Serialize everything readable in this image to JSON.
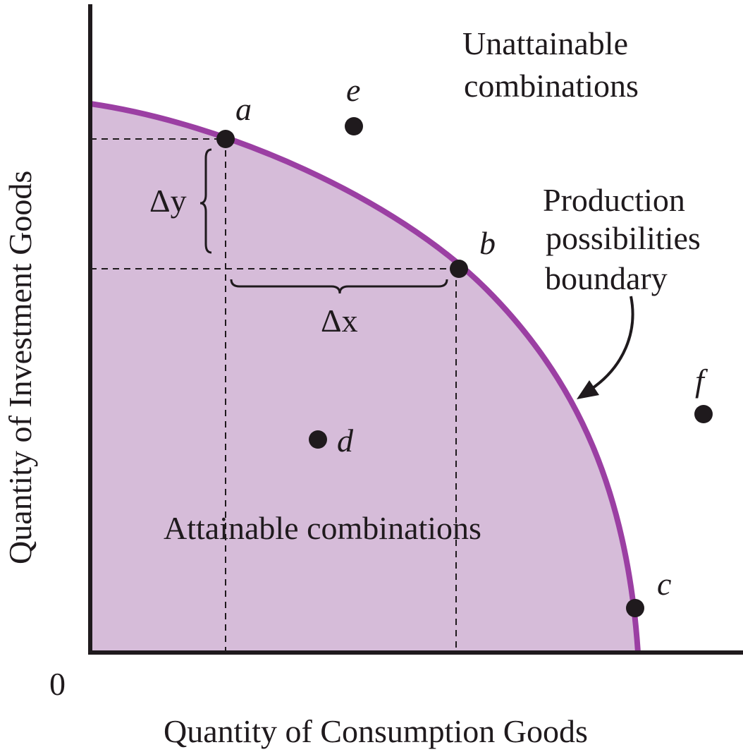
{
  "chart_data": {
    "type": "diagram",
    "xlabel": "Quantity of Consumption Goods",
    "ylabel": "Quantity of Investment Goods",
    "origin_label": "0",
    "region_labels": {
      "attainable": "Attainable combinations",
      "unattainable_line1": "Unattainable",
      "unattainable_line2": "combinations"
    },
    "curve_label": {
      "line1": "Production",
      "line2": "possibilities",
      "line3": "boundary"
    },
    "delta_labels": {
      "dy": "Δy",
      "dx": "Δx"
    },
    "points": [
      {
        "name": "a",
        "on_boundary": true
      },
      {
        "name": "b",
        "on_boundary": true
      },
      {
        "name": "c",
        "on_boundary": true
      },
      {
        "name": "d",
        "on_boundary": false
      },
      {
        "name": "e",
        "on_boundary": false
      },
      {
        "name": "f",
        "on_boundary": false
      }
    ],
    "colors": {
      "boundary": "#9b3fa3",
      "fill": "#d6bcd9",
      "ink": "#1f1a1d"
    }
  }
}
